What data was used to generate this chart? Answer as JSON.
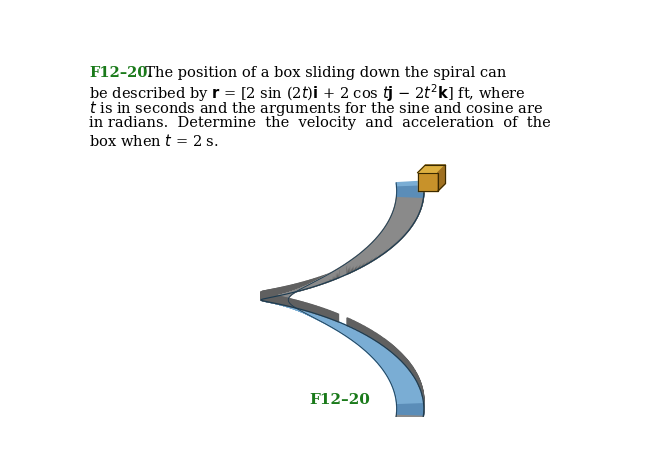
{
  "background_color": "#ffffff",
  "fig_width": 6.63,
  "fig_height": 4.69,
  "dpi": 100,
  "label": "F12–20",
  "label_color": "#1a7a1a",
  "label_fontsize": 11,
  "spiral_blue_light": "#7aadd4",
  "spiral_blue_mid": "#5b8db8",
  "spiral_blue_dark": "#3a6a90",
  "spiral_gray": "#8a8a8a",
  "spiral_gray_dark": "#606060",
  "spiral_edge": "#1a3a50",
  "box_front": "#c8922a",
  "box_top": "#ddb040",
  "box_right": "#a07020",
  "box_edge": "#3a2a00"
}
